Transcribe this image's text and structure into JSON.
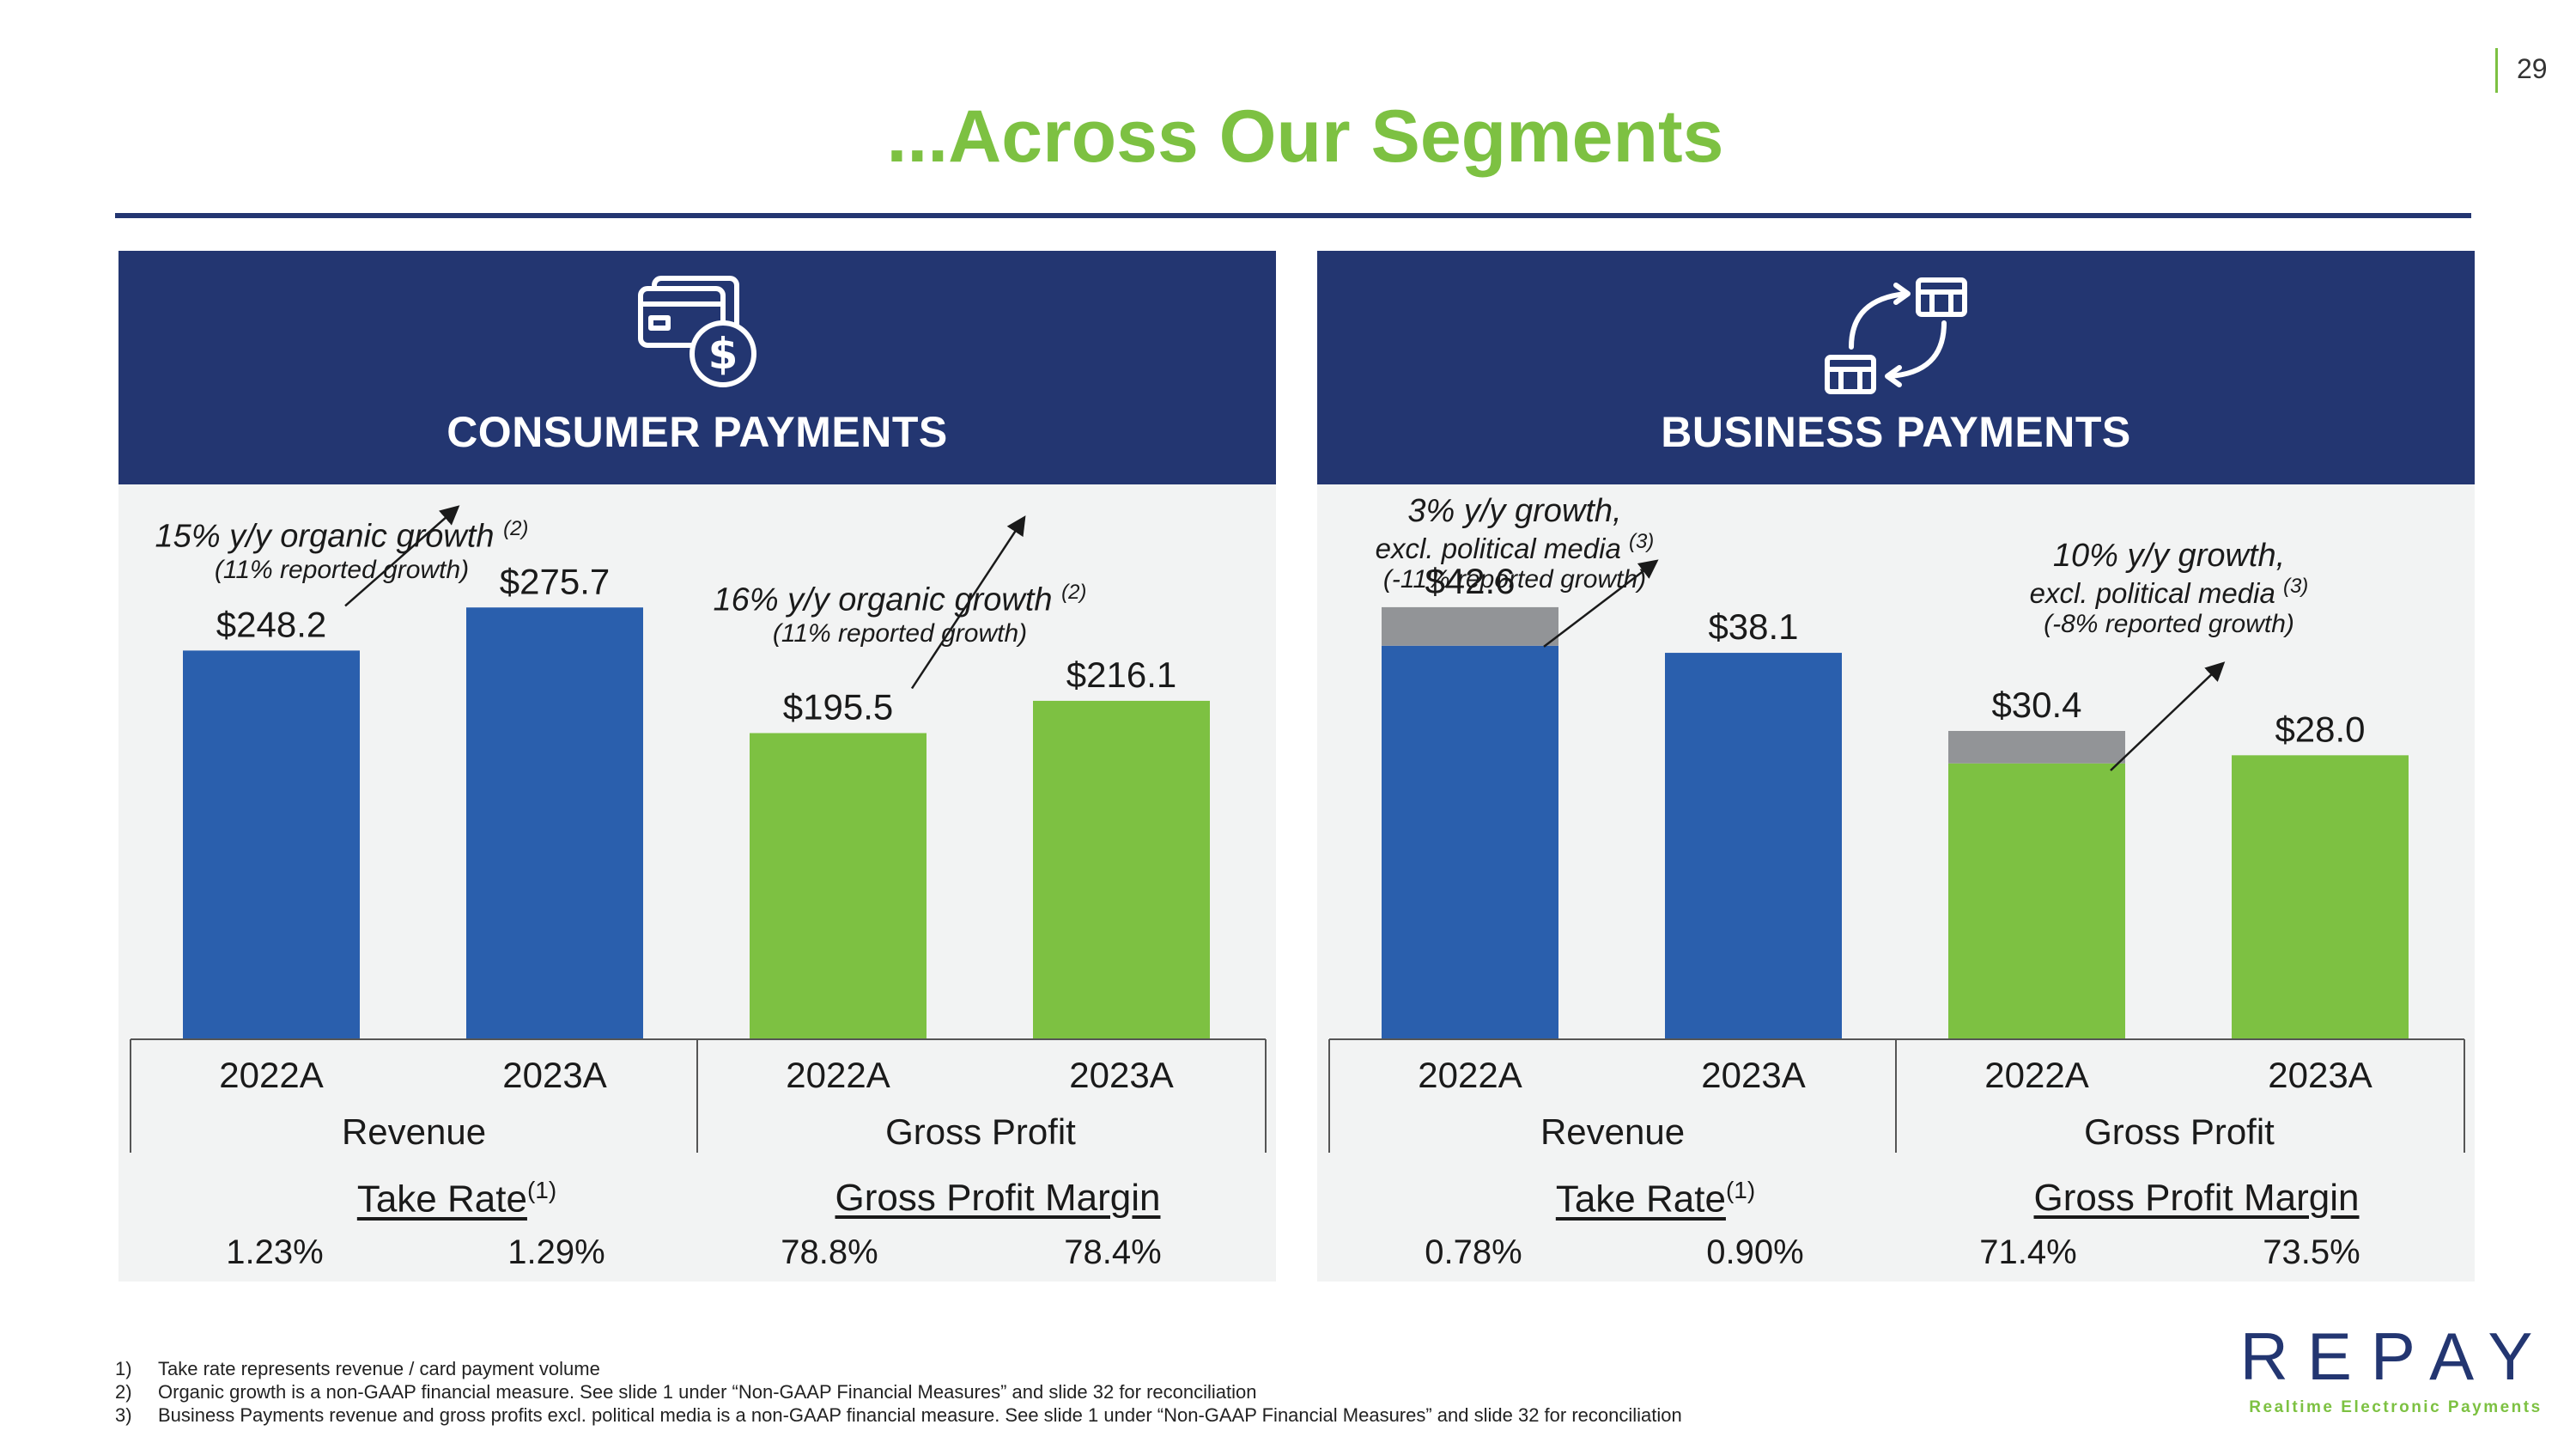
{
  "page_number": "29",
  "title": "...Across Our Segments",
  "colors": {
    "navy": "#233671",
    "green": "#7dc142",
    "blue": "#2a5fad",
    "gray": "#929497",
    "panel_bg": "#f2f3f3"
  },
  "panels": [
    {
      "id": "consumer",
      "name": "CONSUMER PAYMENTS",
      "icon": "credit-card-dollar-icon",
      "growth_notes": [
        {
          "main": "15% y/y organic growth",
          "sup": "(2)",
          "sub": "(11% reported growth)"
        },
        {
          "main": "16% y/y organic growth",
          "sup": "(2)",
          "sub": "(11% reported growth)"
        }
      ],
      "metrics": [
        {
          "title": "Take Rate",
          "sup": "(1)",
          "values": [
            "1.23%",
            "1.29%"
          ]
        },
        {
          "title": "Gross Profit Margin",
          "sup": "",
          "values": [
            "78.8%",
            "78.4%"
          ]
        }
      ]
    },
    {
      "id": "business",
      "name": "BUSINESS PAYMENTS",
      "icon": "storefront-exchange-icon",
      "growth_notes": [
        {
          "main": "3% y/y growth,",
          "main2": "excl. political media",
          "sup": "(3)",
          "sub": "(-11% reported growth)"
        },
        {
          "main": "10% y/y growth,",
          "main2": "excl. political media",
          "sup": "(3)",
          "sub": "(-8% reported growth)"
        }
      ],
      "metrics": [
        {
          "title": "Take Rate",
          "sup": "(1)",
          "values": [
            "0.78%",
            "0.90%"
          ]
        },
        {
          "title": "Gross Profit Margin",
          "sup": "",
          "values": [
            "71.4%",
            "73.5%"
          ]
        }
      ]
    }
  ],
  "chart_data": [
    {
      "type": "bar",
      "title": "CONSUMER PAYMENTS",
      "groups": [
        "Revenue",
        "Gross Profit"
      ],
      "categories": [
        "2022A",
        "2023A",
        "2022A",
        "2023A"
      ],
      "group_index": [
        0,
        0,
        1,
        1
      ],
      "values": [
        248.2,
        275.7,
        195.5,
        216.1
      ],
      "labels": [
        "$248.2",
        "$275.7",
        "$195.5",
        "$216.1"
      ],
      "ylim": [
        0,
        340
      ]
    },
    {
      "type": "bar",
      "title": "BUSINESS PAYMENTS",
      "groups": [
        "Revenue",
        "Gross Profit"
      ],
      "categories": [
        "2022A",
        "2023A",
        "2022A",
        "2023A"
      ],
      "group_index": [
        0,
        0,
        1,
        1
      ],
      "values": [
        42.6,
        38.1,
        30.4,
        28.0
      ],
      "political_media_portion": [
        3.8,
        0,
        3.2,
        0
      ],
      "labels": [
        "$42.6",
        "$38.1",
        "$30.4",
        "$28.0"
      ],
      "ylim": [
        0,
        52.5
      ]
    }
  ],
  "footnotes": [
    {
      "n": "1)",
      "text": "Take rate represents revenue / card payment volume"
    },
    {
      "n": "2)",
      "text": "Organic growth is a non-GAAP financial measure. See slide 1 under “Non-GAAP Financial Measures” and slide 32 for reconciliation"
    },
    {
      "n": "3)",
      "text": "Business Payments revenue and gross profits excl. political media is a non-GAAP financial measure. See slide 1 under “Non-GAAP Financial Measures” and slide 32 for reconciliation"
    }
  ],
  "logo": {
    "word": "REPAY",
    "tagline": "Realtime Electronic Payments"
  }
}
